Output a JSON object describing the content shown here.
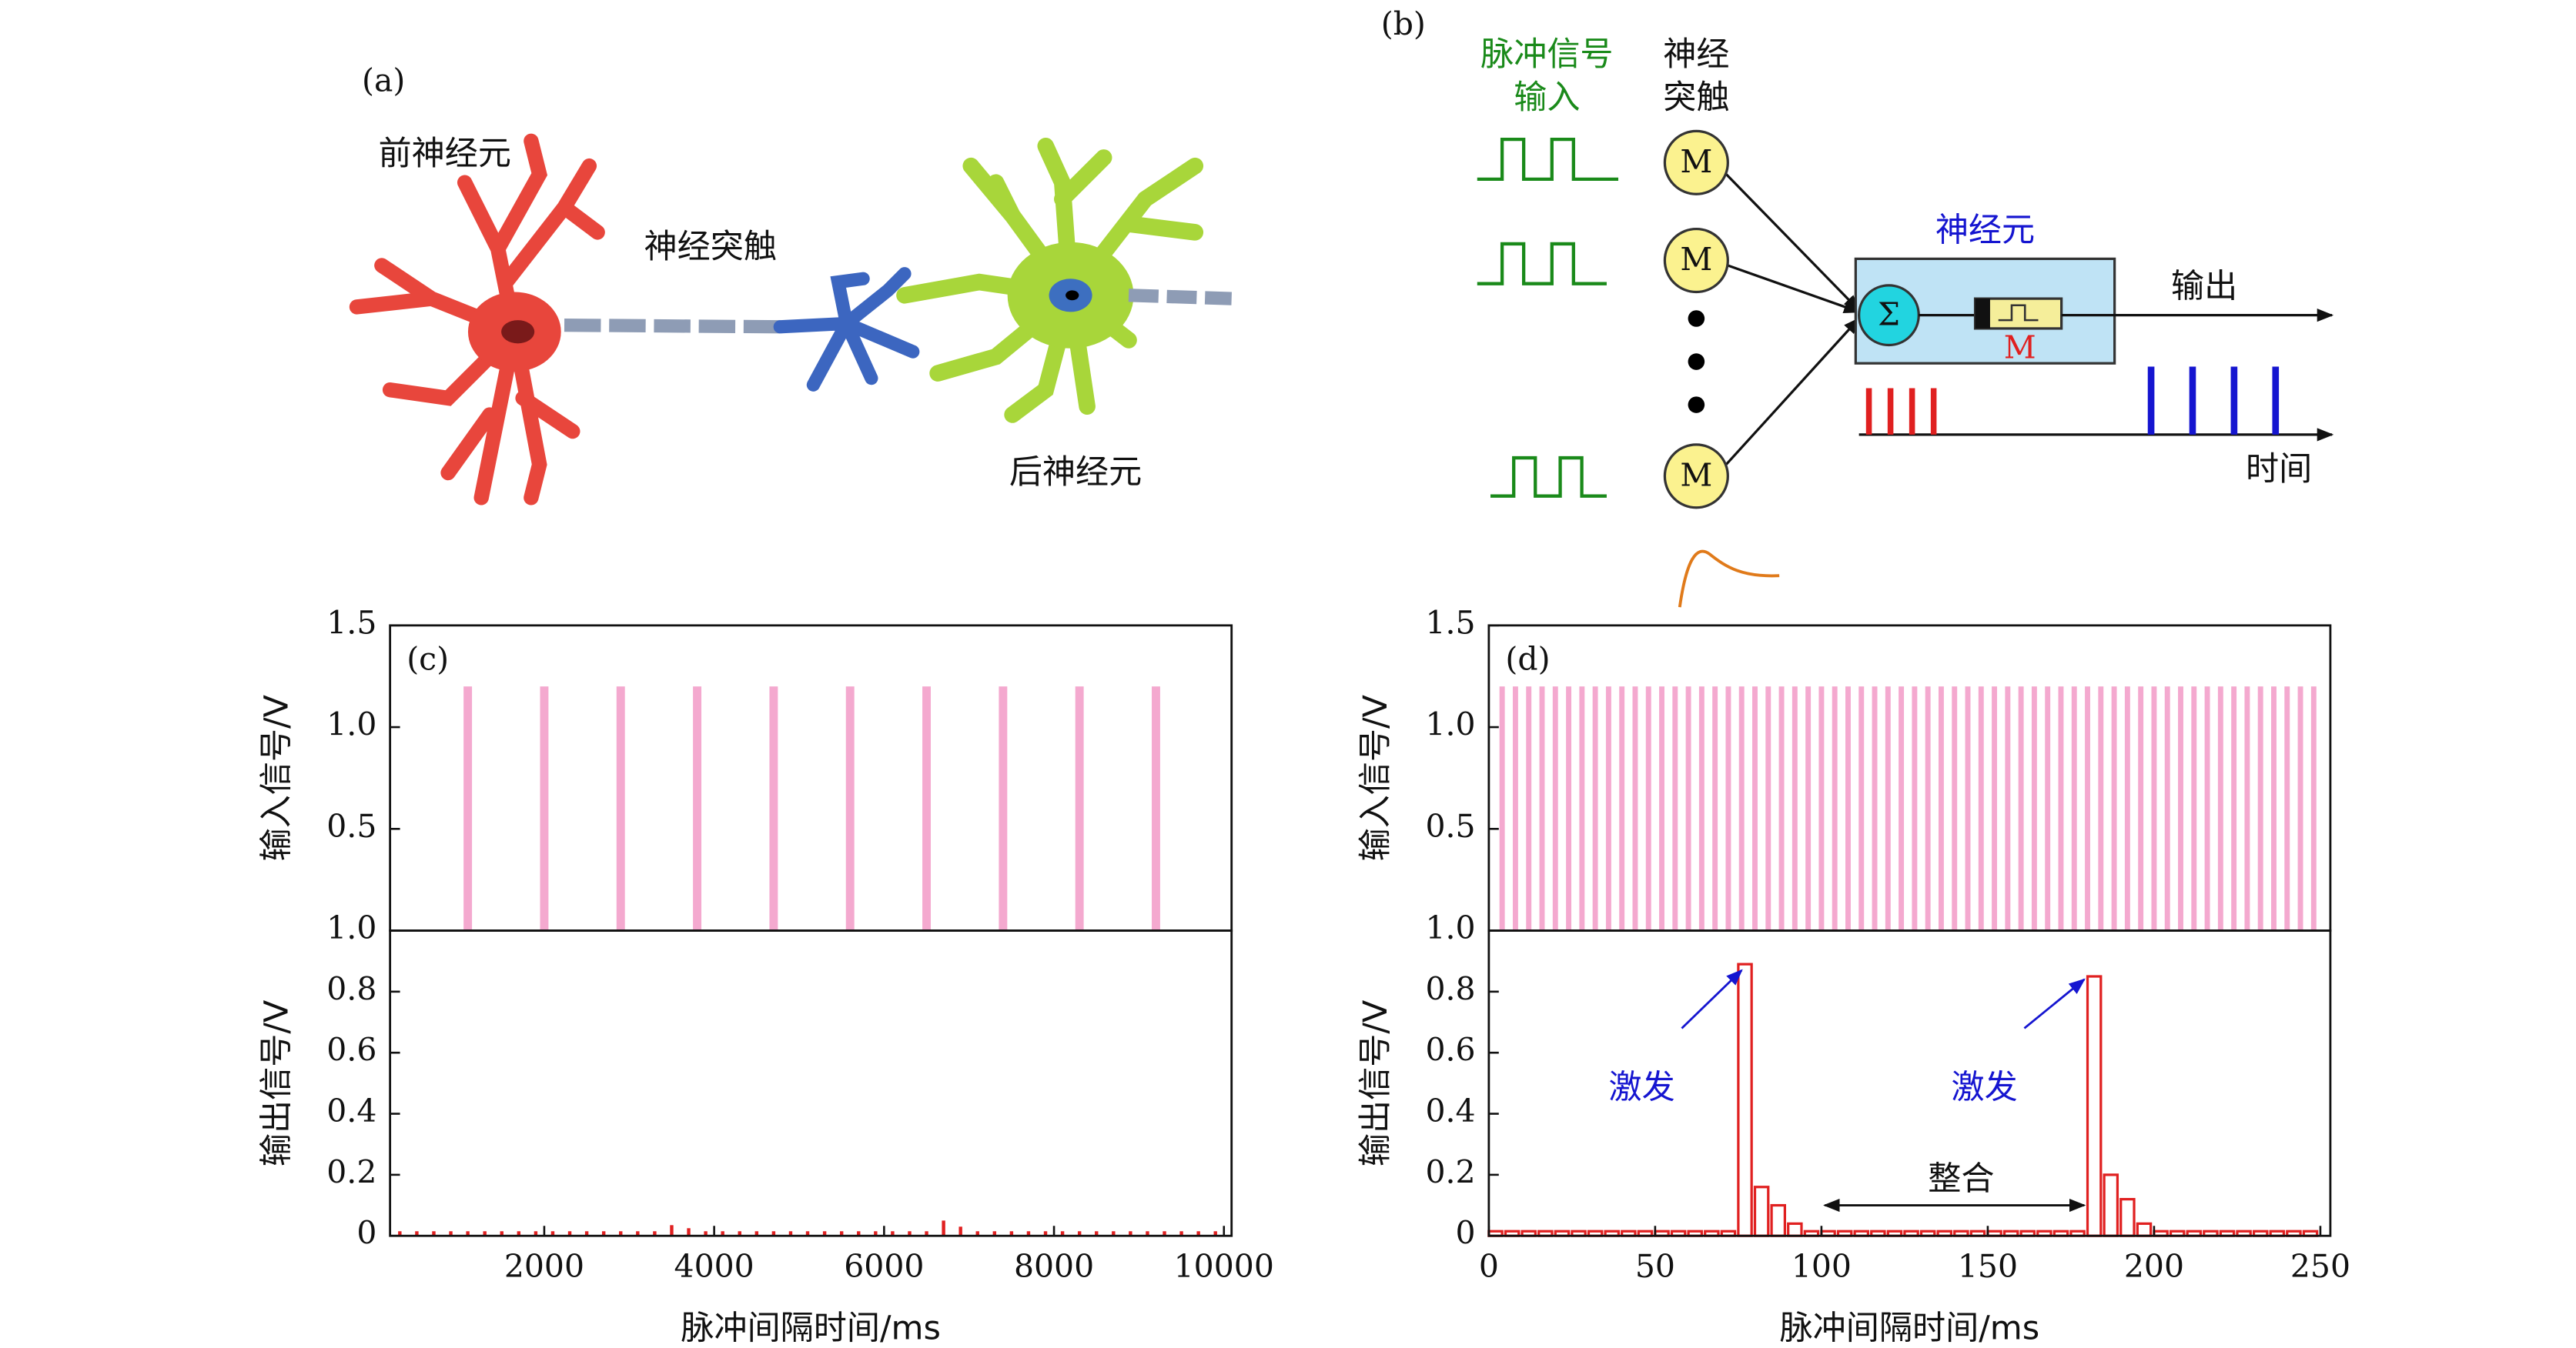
{
  "panel_a": {
    "label": "(a)",
    "pre_neuron": "前神经元",
    "synapse": "神经突触",
    "post_neuron": "后神经元"
  },
  "panel_b": {
    "label": "(b)",
    "input_heading": [
      "脉冲信号",
      "输入"
    ],
    "synapse_heading": [
      "神经",
      "突触"
    ],
    "memristors": [
      "M",
      "M",
      "M"
    ],
    "neuron": "神经元",
    "sum": "Σ",
    "device": "M",
    "output": "输出",
    "time": "时间"
  },
  "chart_data": [
    {
      "type": "bar",
      "label": "(c)",
      "ylabel": "输入信号/V",
      "bar_style": "filled",
      "color": "#f4a9cf",
      "x": [
        1100,
        2000,
        2900,
        3800,
        4700,
        5600,
        6500,
        7400,
        8300,
        9200
      ],
      "values": [
        1.2,
        1.2,
        1.2,
        1.2,
        1.2,
        1.2,
        1.2,
        1.2,
        1.2,
        1.2
      ],
      "xlim": [
        185,
        10090
      ],
      "ylim": [
        0,
        1.5
      ],
      "yticks": [
        0.5,
        {
          "value": 1.0,
          "label": "1.0"
        },
        1.5
      ]
    },
    {
      "type": "bar",
      "ylabel": "输出信号/V",
      "xlabel": "脉冲间隔时间/ms",
      "bar_style": "filled",
      "color": "#e02020",
      "x": [
        300,
        500,
        700,
        900,
        1100,
        1300,
        1500,
        1700,
        1900,
        2100,
        2300,
        2500,
        2700,
        2900,
        3100,
        3300,
        3500,
        3700,
        3900,
        4100,
        4300,
        4500,
        4700,
        4900,
        5100,
        5300,
        5500,
        5700,
        5900,
        6100,
        6300,
        6500,
        6700,
        6900,
        7100,
        7300,
        7500,
        7700,
        7900,
        8100,
        8300,
        8500,
        8700,
        8900,
        9100,
        9300,
        9500,
        9700,
        9900
      ],
      "values": [
        0.015,
        0.015,
        0.015,
        0.015,
        0.015,
        0.015,
        0.015,
        0.015,
        0.015,
        0.015,
        0.015,
        0.015,
        0.015,
        0.015,
        0.015,
        0.015,
        0.035,
        0.025,
        0.015,
        0.015,
        0.015,
        0.015,
        0.015,
        0.015,
        0.015,
        0.015,
        0.015,
        0.015,
        0.015,
        0.015,
        0.015,
        0.015,
        0.05,
        0.03,
        0.015,
        0.015,
        0.015,
        0.015,
        0.015,
        0.015,
        0.015,
        0.015,
        0.015,
        0.015,
        0.015,
        0.015,
        0.015,
        0.015,
        0.015
      ],
      "xlim": [
        185,
        10090
      ],
      "xticks": [
        2000,
        4000,
        6000,
        8000,
        10000
      ],
      "ylim": [
        0,
        1.0
      ],
      "yticks": [
        0,
        0.2,
        0.4,
        0.6,
        0.8,
        {
          "value": 1.0,
          "label": "1.0"
        }
      ]
    },
    {
      "type": "bar",
      "label": "(d)",
      "ylabel": "输入信号/V",
      "bar_style": "filled",
      "color": "#f4a9cf",
      "x": [
        4,
        8,
        12,
        16,
        20,
        24,
        28,
        32,
        36,
        40,
        44,
        48,
        52,
        56,
        60,
        64,
        68,
        72,
        76,
        80,
        84,
        88,
        92,
        96,
        100,
        104,
        108,
        112,
        116,
        120,
        124,
        128,
        132,
        136,
        140,
        144,
        148,
        152,
        156,
        160,
        164,
        168,
        172,
        176,
        180,
        184,
        188,
        192,
        196,
        200,
        204,
        208,
        212,
        216,
        220,
        224,
        228,
        232,
        236,
        240,
        244,
        248
      ],
      "values": [
        1.2,
        1.2,
        1.2,
        1.2,
        1.2,
        1.2,
        1.2,
        1.2,
        1.2,
        1.2,
        1.2,
        1.2,
        1.2,
        1.2,
        1.2,
        1.2,
        1.2,
        1.2,
        1.2,
        1.2,
        1.2,
        1.2,
        1.2,
        1.2,
        1.2,
        1.2,
        1.2,
        1.2,
        1.2,
        1.2,
        1.2,
        1.2,
        1.2,
        1.2,
        1.2,
        1.2,
        1.2,
        1.2,
        1.2,
        1.2,
        1.2,
        1.2,
        1.2,
        1.2,
        1.2,
        1.2,
        1.2,
        1.2,
        1.2,
        1.2,
        1.2,
        1.2,
        1.2,
        1.2,
        1.2,
        1.2,
        1.2,
        1.2,
        1.2,
        1.2,
        1.2,
        1.2
      ],
      "xlim": [
        0,
        253
      ],
      "ylim": [
        0,
        1.5
      ],
      "yticks": [
        0.5,
        {
          "value": 1.0,
          "label": "1.0"
        },
        1.5
      ]
    },
    {
      "type": "bar",
      "ylabel": "输出信号/V",
      "xlabel": "脉冲间隔时间/ms",
      "bar_style": "hollow",
      "color": "#e02020",
      "x": [
        2,
        7,
        12,
        17,
        22,
        27,
        32,
        37,
        42,
        47,
        52,
        57,
        62,
        67,
        72,
        77,
        82,
        87,
        92,
        97,
        102,
        107,
        112,
        117,
        122,
        127,
        132,
        137,
        142,
        147,
        152,
        157,
        162,
        167,
        172,
        177,
        182,
        187,
        192,
        197,
        202,
        207,
        212,
        217,
        222,
        227,
        232,
        237,
        242,
        247
      ],
      "values": [
        0.015,
        0.015,
        0.015,
        0.015,
        0.015,
        0.015,
        0.015,
        0.015,
        0.015,
        0.015,
        0.015,
        0.015,
        0.015,
        0.015,
        0.015,
        0.89,
        0.16,
        0.1,
        0.04,
        0.015,
        0.015,
        0.015,
        0.015,
        0.015,
        0.015,
        0.015,
        0.015,
        0.015,
        0.015,
        0.015,
        0.015,
        0.015,
        0.015,
        0.015,
        0.015,
        0.015,
        0.85,
        0.2,
        0.12,
        0.04,
        0.015,
        0.015,
        0.015,
        0.015,
        0.015,
        0.015,
        0.015,
        0.015,
        0.015,
        0.015
      ],
      "xlim": [
        0,
        253
      ],
      "xticks": [
        0,
        50,
        100,
        150,
        200,
        250
      ],
      "ylim": [
        0,
        1.0
      ],
      "yticks": [
        0,
        0.2,
        0.4,
        0.6,
        0.8,
        {
          "value": 1.0,
          "label": "1.0"
        }
      ],
      "annotations": [
        "激发",
        "激发",
        "整合"
      ]
    }
  ]
}
